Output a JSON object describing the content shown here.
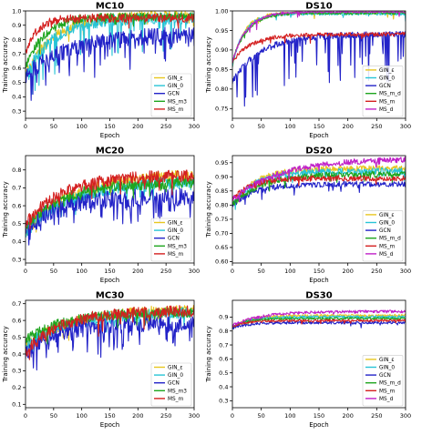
{
  "chart_data": [
    {
      "type": "line",
      "title": "MC10",
      "xlabel": "Epoch",
      "ylabel": "Training accuracy",
      "xlim": [
        0,
        300
      ],
      "ylim": [
        0.25,
        1.0
      ],
      "xticks": [
        0,
        50,
        100,
        150,
        200,
        250,
        300
      ],
      "yticks": [
        0.3,
        0.4,
        0.5,
        0.6,
        0.7,
        0.8,
        0.9,
        1.0
      ],
      "xticklabels": [
        "0",
        "50",
        "100",
        "150",
        "200",
        "250",
        "300"
      ],
      "yticklabels": [
        "0.3",
        "0.4",
        "0.5",
        "0.6",
        "0.7",
        "0.8",
        "0.9",
        "1.0"
      ],
      "legend_position": "bottom-right",
      "series": [
        {
          "name": "GIN_ε",
          "color": "#e8c620",
          "profile": {
            "start": 0.55,
            "plateau": 0.97,
            "rate": 0.02,
            "noise": 0.035,
            "dips": 0.06,
            "dip_depth": 0.08
          }
        },
        {
          "name": "GIN_0",
          "color": "#28c4d6",
          "profile": {
            "start": 0.55,
            "plateau": 0.95,
            "rate": 0.02,
            "noise": 0.04,
            "dips": 0.12,
            "dip_depth": 0.25
          }
        },
        {
          "name": "GCN",
          "color": "#2323c8",
          "profile": {
            "start": 0.55,
            "plateau": 0.84,
            "rate": 0.012,
            "noise": 0.06,
            "dips": 0.15,
            "dip_depth": 0.2
          }
        },
        {
          "name": "MS_m3",
          "color": "#1fa51f",
          "profile": {
            "start": 0.6,
            "plateau": 0.96,
            "rate": 0.03,
            "noise": 0.03,
            "dips": 0.04,
            "dip_depth": 0.08
          }
        },
        {
          "name": "MS_m",
          "color": "#d42020",
          "profile": {
            "start": 0.7,
            "plateau": 0.95,
            "rate": 0.05,
            "noise": 0.03,
            "dips": 0.04,
            "dip_depth": 0.06
          }
        }
      ]
    },
    {
      "type": "line",
      "title": "DS10",
      "xlabel": "Epoch",
      "ylabel": "Training accuracy",
      "xlim": [
        0,
        300
      ],
      "ylim": [
        0.725,
        1.0
      ],
      "xticks": [
        0,
        50,
        100,
        150,
        200,
        250,
        300
      ],
      "yticks": [
        0.75,
        0.8,
        0.85,
        0.9,
        0.95,
        1.0
      ],
      "xticklabels": [
        "0",
        "50",
        "100",
        "150",
        "200",
        "250",
        "300"
      ],
      "yticklabels": [
        "0.75",
        "0.80",
        "0.85",
        "0.90",
        "0.95",
        "1.00"
      ],
      "legend_position": "bottom-right",
      "series": [
        {
          "name": "GIN_ε",
          "color": "#e8c620",
          "profile": {
            "start": 0.86,
            "plateau": 0.995,
            "rate": 0.05,
            "noise": 0.004,
            "dips": 0.02,
            "dip_depth": 0.02
          }
        },
        {
          "name": "GIN_0",
          "color": "#28c4d6",
          "profile": {
            "start": 0.86,
            "plateau": 0.993,
            "rate": 0.05,
            "noise": 0.004,
            "dips": 0.02,
            "dip_depth": 0.02
          }
        },
        {
          "name": "GCN",
          "color": "#2323c8",
          "profile": {
            "start": 0.82,
            "plateau": 0.94,
            "rate": 0.02,
            "noise": 0.008,
            "dips": 0.2,
            "dip_depth": 0.12
          }
        },
        {
          "name": "MS_m_d",
          "color": "#1fa51f",
          "profile": {
            "start": 0.87,
            "plateau": 0.995,
            "rate": 0.04,
            "noise": 0.004,
            "dips": 0.02,
            "dip_depth": 0.02
          }
        },
        {
          "name": "MS_m",
          "color": "#d42020",
          "profile": {
            "start": 0.87,
            "plateau": 0.94,
            "rate": 0.03,
            "noise": 0.005,
            "dips": 0.02,
            "dip_depth": 0.02
          }
        },
        {
          "name": "MS_d",
          "color": "#c020c8",
          "profile": {
            "start": 0.87,
            "plateau": 0.998,
            "rate": 0.04,
            "noise": 0.003,
            "dips": 0.02,
            "dip_depth": 0.02
          }
        }
      ]
    },
    {
      "type": "line",
      "title": "MC20",
      "xlabel": "Epoch",
      "ylabel": "Training accuracy",
      "xlim": [
        0,
        300
      ],
      "ylim": [
        0.28,
        0.88
      ],
      "xticks": [
        0,
        50,
        100,
        150,
        200,
        250,
        300
      ],
      "yticks": [
        0.3,
        0.4,
        0.5,
        0.6,
        0.7,
        0.8
      ],
      "xticklabels": [
        "0",
        "50",
        "100",
        "150",
        "200",
        "250",
        "300"
      ],
      "yticklabels": [
        "0.3",
        "0.4",
        "0.5",
        "0.6",
        "0.7",
        "0.8"
      ],
      "legend_position": "bottom-right",
      "series": [
        {
          "name": "GIN_ε",
          "color": "#e8c620",
          "profile": {
            "start": 0.45,
            "plateau": 0.78,
            "rate": 0.012,
            "noise": 0.03,
            "dips": 0.06,
            "dip_depth": 0.06
          }
        },
        {
          "name": "GIN_0",
          "color": "#28c4d6",
          "profile": {
            "start": 0.45,
            "plateau": 0.74,
            "rate": 0.012,
            "noise": 0.035,
            "dips": 0.08,
            "dip_depth": 0.08
          }
        },
        {
          "name": "GCN",
          "color": "#2323c8",
          "profile": {
            "start": 0.45,
            "plateau": 0.65,
            "rate": 0.02,
            "noise": 0.05,
            "dips": 0.2,
            "dip_depth": 0.12
          }
        },
        {
          "name": "MS_m3",
          "color": "#1fa51f",
          "profile": {
            "start": 0.48,
            "plateau": 0.73,
            "rate": 0.015,
            "noise": 0.03,
            "dips": 0.06,
            "dip_depth": 0.06
          }
        },
        {
          "name": "MS_m",
          "color": "#d42020",
          "profile": {
            "start": 0.5,
            "plateau": 0.77,
            "rate": 0.015,
            "noise": 0.035,
            "dips": 0.08,
            "dip_depth": 0.08
          }
        }
      ]
    },
    {
      "type": "line",
      "title": "DS20",
      "xlabel": "Epoch",
      "ylabel": "Training accuracy",
      "xlim": [
        0,
        300
      ],
      "ylim": [
        0.595,
        0.975
      ],
      "xticks": [
        0,
        50,
        100,
        150,
        200,
        250,
        300
      ],
      "yticks": [
        0.6,
        0.65,
        0.7,
        0.75,
        0.8,
        0.85,
        0.9,
        0.95
      ],
      "xticklabels": [
        "0",
        "50",
        "100",
        "150",
        "200",
        "250",
        "300"
      ],
      "yticklabels": [
        "0.60",
        "0.65",
        "0.70",
        "0.75",
        "0.80",
        "0.85",
        "0.90",
        "0.95"
      ],
      "legend_position": "bottom-right",
      "series": [
        {
          "name": "GIN_ε",
          "color": "#e8c620",
          "profile": {
            "start": 0.8,
            "plateau": 0.93,
            "rate": 0.025,
            "noise": 0.01,
            "dips": 0.04,
            "dip_depth": 0.03
          }
        },
        {
          "name": "GIN_0",
          "color": "#28c4d6",
          "profile": {
            "start": 0.8,
            "plateau": 0.92,
            "rate": 0.025,
            "noise": 0.012,
            "dips": 0.05,
            "dip_depth": 0.03
          }
        },
        {
          "name": "GCN",
          "color": "#2323c8",
          "profile": {
            "start": 0.8,
            "plateau": 0.875,
            "rate": 0.025,
            "noise": 0.01,
            "dips": 0.05,
            "dip_depth": 0.03
          }
        },
        {
          "name": "MS_m_d",
          "color": "#1fa51f",
          "profile": {
            "start": 0.8,
            "plateau": 0.91,
            "rate": 0.02,
            "noise": 0.01,
            "dips": 0.04,
            "dip_depth": 0.03
          }
        },
        {
          "name": "MS_m",
          "color": "#d42020",
          "profile": {
            "start": 0.82,
            "plateau": 0.895,
            "rate": 0.03,
            "noise": 0.01,
            "dips": 0.04,
            "dip_depth": 0.02
          }
        },
        {
          "name": "MS_d",
          "color": "#c020c8",
          "profile": {
            "start": 0.82,
            "plateau": 0.965,
            "rate": 0.012,
            "noise": 0.01,
            "dips": 0.04,
            "dip_depth": 0.03
          }
        }
      ]
    },
    {
      "type": "line",
      "title": "MC30",
      "xlabel": "Epoch",
      "ylabel": "Training accuracy",
      "xlim": [
        0,
        300
      ],
      "ylim": [
        0.08,
        0.72
      ],
      "xticks": [
        0,
        50,
        100,
        150,
        200,
        250,
        300
      ],
      "yticks": [
        0.1,
        0.2,
        0.3,
        0.4,
        0.5,
        0.6,
        0.7
      ],
      "xticklabels": [
        "0",
        "50",
        "100",
        "150",
        "200",
        "250",
        "300"
      ],
      "yticklabels": [
        "0.1",
        "0.2",
        "0.3",
        "0.4",
        "0.5",
        "0.6",
        "0.7"
      ],
      "legend_position": "bottom-right",
      "series": [
        {
          "name": "GIN_ε",
          "color": "#e8c620",
          "profile": {
            "start": 0.45,
            "plateau": 0.67,
            "rate": 0.012,
            "noise": 0.03,
            "dips": 0.05,
            "dip_depth": 0.08
          }
        },
        {
          "name": "GIN_0",
          "color": "#28c4d6",
          "profile": {
            "start": 0.45,
            "plateau": 0.65,
            "rate": 0.012,
            "noise": 0.035,
            "dips": 0.06,
            "dip_depth": 0.1
          }
        },
        {
          "name": "GCN",
          "color": "#2323c8",
          "profile": {
            "start": 0.4,
            "plateau": 0.58,
            "rate": 0.02,
            "noise": 0.05,
            "dips": 0.22,
            "dip_depth": 0.15
          }
        },
        {
          "name": "MS_m3",
          "color": "#1fa51f",
          "profile": {
            "start": 0.48,
            "plateau": 0.65,
            "rate": 0.015,
            "noise": 0.03,
            "dips": 0.05,
            "dip_depth": 0.08
          }
        },
        {
          "name": "MS_m",
          "color": "#d42020",
          "profile": {
            "start": 0.42,
            "plateau": 0.66,
            "rate": 0.015,
            "noise": 0.035,
            "dips": 0.06,
            "dip_depth": 0.1
          }
        }
      ]
    },
    {
      "type": "line",
      "title": "DS30",
      "xlabel": "Epoch",
      "ylabel": "Training accuracy",
      "xlim": [
        0,
        300
      ],
      "ylim": [
        0.25,
        1.02
      ],
      "xticks": [
        0,
        50,
        100,
        150,
        200,
        250,
        300
      ],
      "yticks": [
        0.3,
        0.4,
        0.5,
        0.6,
        0.7,
        0.8,
        0.9
      ],
      "xticklabels": [
        "0",
        "50",
        "100",
        "150",
        "200",
        "250",
        "300"
      ],
      "yticklabels": [
        "0.3",
        "0.4",
        "0.5",
        "0.6",
        "0.7",
        "0.8",
        "0.9"
      ],
      "legend_position": "bottom-right",
      "series": [
        {
          "name": "GIN_ε",
          "color": "#e8c620",
          "profile": {
            "start": 0.82,
            "plateau": 0.91,
            "rate": 0.04,
            "noise": 0.01,
            "dips": 0.03,
            "dip_depth": 0.03
          }
        },
        {
          "name": "GIN_0",
          "color": "#28c4d6",
          "profile": {
            "start": 0.82,
            "plateau": 0.9,
            "rate": 0.04,
            "noise": 0.01,
            "dips": 0.03,
            "dip_depth": 0.03
          }
        },
        {
          "name": "GCN",
          "color": "#2323c8",
          "profile": {
            "start": 0.82,
            "plateau": 0.86,
            "rate": 0.04,
            "noise": 0.01,
            "dips": 0.03,
            "dip_depth": 0.03
          }
        },
        {
          "name": "MS_m_d",
          "color": "#1fa51f",
          "profile": {
            "start": 0.83,
            "plateau": 0.89,
            "rate": 0.04,
            "noise": 0.008,
            "dips": 0.03,
            "dip_depth": 0.02
          }
        },
        {
          "name": "MS_m",
          "color": "#d42020",
          "profile": {
            "start": 0.83,
            "plateau": 0.875,
            "rate": 0.04,
            "noise": 0.008,
            "dips": 0.03,
            "dip_depth": 0.02
          }
        },
        {
          "name": "MS_d",
          "color": "#c020c8",
          "profile": {
            "start": 0.84,
            "plateau": 0.94,
            "rate": 0.02,
            "noise": 0.01,
            "dips": 0.03,
            "dip_depth": 0.02
          }
        }
      ]
    }
  ]
}
